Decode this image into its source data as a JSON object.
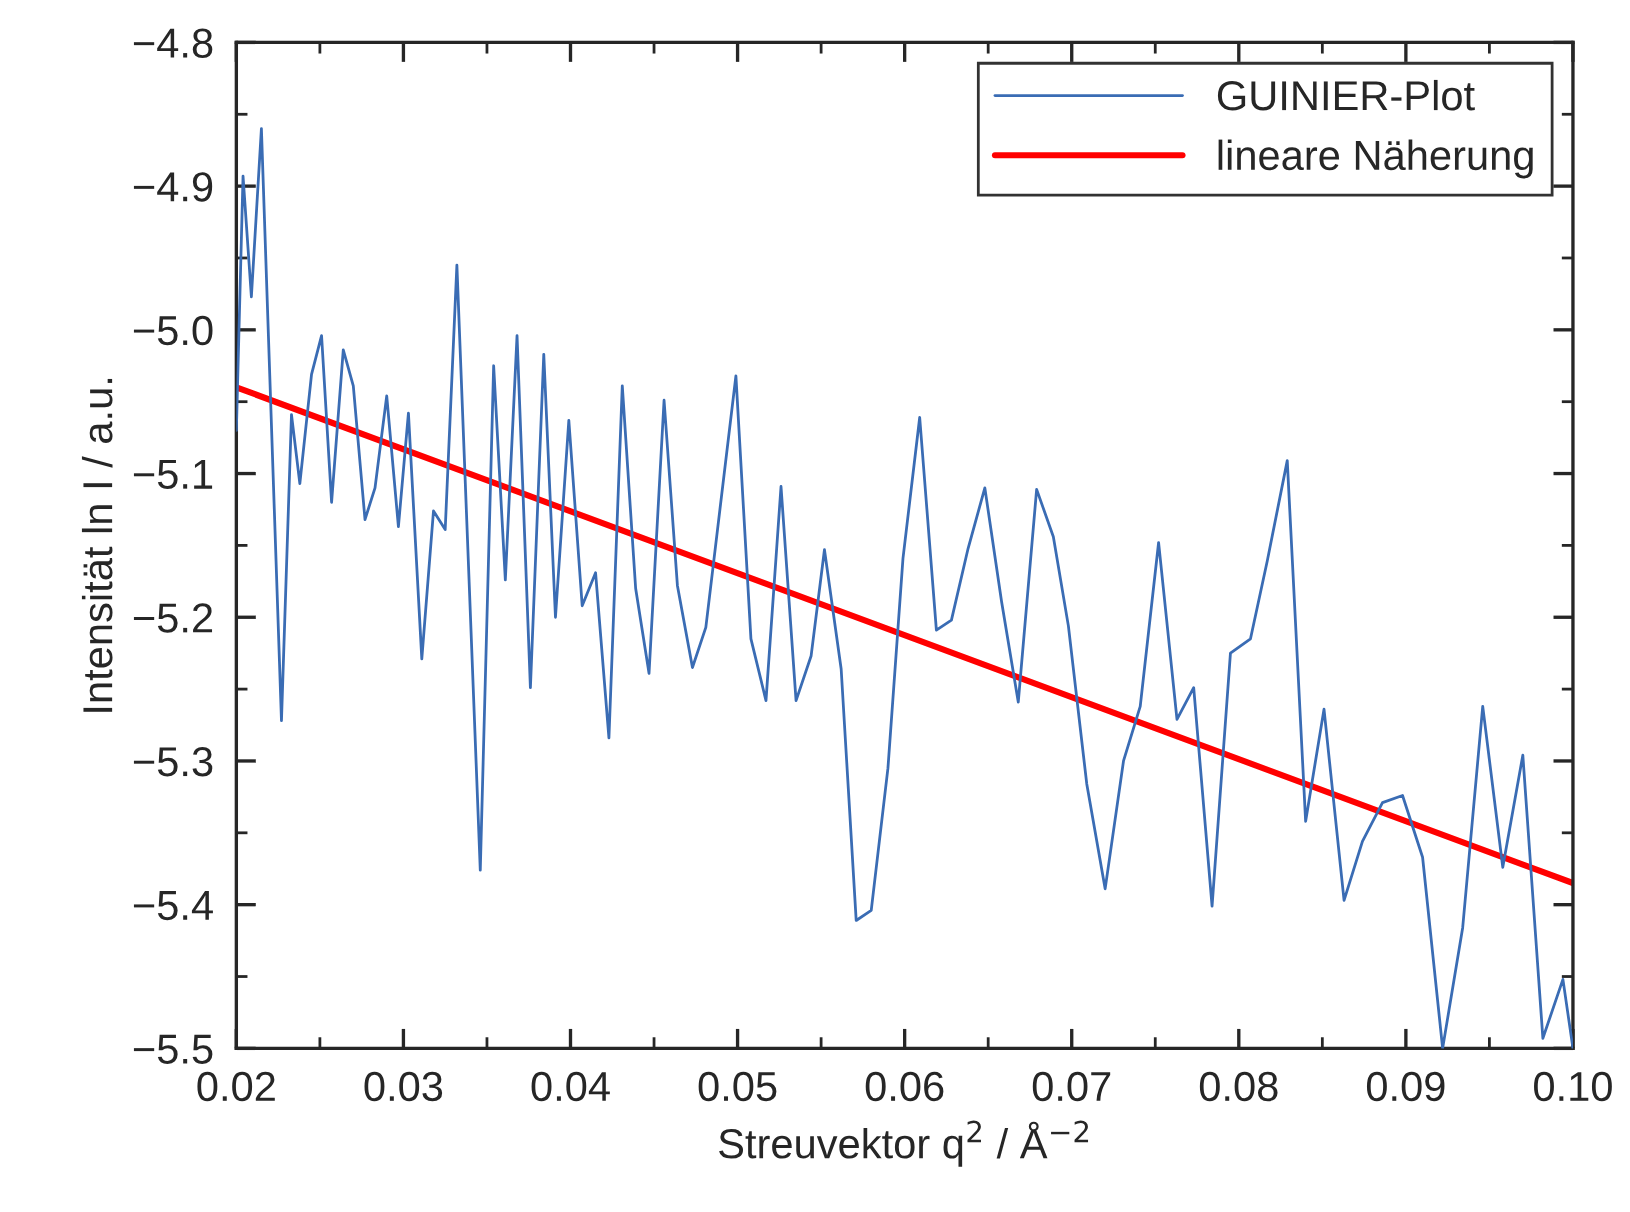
{
  "chart_data": {
    "type": "line",
    "xlabel": "Streuvektor q$^{2}$ / Å$^{−2}$",
    "ylabel": "Intensität ln I / a.u.",
    "xlim": [
      0.02,
      0.1
    ],
    "xticks": [
      0.02,
      0.03,
      0.04,
      0.05,
      0.06,
      0.07,
      0.08,
      0.09,
      {
        "value": 0.1,
        "label": "0.10"
      }
    ],
    "ylim": [
      -5.5,
      -4.8
    ],
    "yticks": [
      {
        "value": -5.5,
        "label": "−5.5"
      },
      {
        "value": -5.4,
        "label": "−5.4"
      },
      {
        "value": -5.3,
        "label": "−5.3"
      },
      {
        "value": -5.2,
        "label": "−5.2"
      },
      {
        "value": -5.1,
        "label": "−5.1"
      },
      {
        "value": -5.0,
        "label": "−5.0"
      },
      {
        "value": -4.9,
        "label": "−4.9"
      },
      {
        "value": -4.8,
        "label": "−4.8"
      }
    ],
    "grid": false,
    "legend": "top right",
    "series": [
      {
        "name": "GUINIER-Plot",
        "color": "#3a6cb4",
        "x": [
          0.02,
          0.0204,
          0.0209,
          0.0215,
          0.0227,
          0.0233,
          0.0238,
          0.0245,
          0.0251,
          0.0257,
          0.0264,
          0.027,
          0.0277,
          0.0283,
          0.029,
          0.0297,
          0.0303,
          0.0311,
          0.0318,
          0.0325,
          0.0332,
          0.0346,
          0.0354,
          0.0361,
          0.0368,
          0.0376,
          0.0384,
          0.0391,
          0.0399,
          0.0407,
          0.0415,
          0.0423,
          0.0431,
          0.0439,
          0.0447,
          0.0456,
          0.0464,
          0.0473,
          0.0481,
          0.0499,
          0.0508,
          0.0517,
          0.0526,
          0.0535,
          0.0544,
          0.0552,
          0.0562,
          0.0571,
          0.058,
          0.059,
          0.0599,
          0.0609,
          0.0619,
          0.0628,
          0.0638,
          0.0648,
          0.0658,
          0.0668,
          0.0679,
          0.0689,
          0.0698,
          0.0709,
          0.072,
          0.0731,
          0.0741,
          0.0752,
          0.0763,
          0.0773,
          0.0784,
          0.0795,
          0.0807,
          0.0817,
          0.0829,
          0.084,
          0.0851,
          0.0863,
          0.0874,
          0.0886,
          0.0898,
          0.091,
          0.0922,
          0.0934,
          0.0946,
          0.0958,
          0.097,
          0.0982,
          0.0994,
          0.1
        ],
        "values": [
          -5.07,
          -4.893,
          -4.977,
          -4.86,
          -5.272,
          -5.059,
          -5.107,
          -5.031,
          -5.004,
          -5.12,
          -5.014,
          -5.039,
          -5.132,
          -5.11,
          -5.046,
          -5.137,
          -5.058,
          -5.229,
          -5.126,
          -5.139,
          -4.955,
          -5.376,
          -5.025,
          -5.174,
          -5.004,
          -5.249,
          -5.017,
          -5.2,
          -5.063,
          -5.192,
          -5.169,
          -5.284,
          -5.039,
          -5.18,
          -5.239,
          -5.049,
          -5.178,
          -5.235,
          -5.207,
          -5.032,
          -5.215,
          -5.258,
          -5.109,
          -5.258,
          -5.227,
          -5.153,
          -5.236,
          -5.411,
          -5.404,
          -5.305,
          -5.159,
          -5.061,
          -5.209,
          -5.202,
          -5.152,
          -5.11,
          -5.189,
          -5.259,
          -5.111,
          -5.144,
          -5.206,
          -5.316,
          -5.389,
          -5.3,
          -5.262,
          -5.148,
          -5.271,
          -5.249,
          -5.401,
          -5.225,
          -5.215,
          -5.161,
          -5.091,
          -5.342,
          -5.264,
          -5.397,
          -5.356,
          -5.329,
          -5.324,
          -5.367,
          -5.5,
          -5.416,
          -5.262,
          -5.374,
          -5.296,
          -5.493,
          -5.452,
          -5.5
        ]
      },
      {
        "name": "lineare Näherung",
        "color": "#ff0000",
        "x": [
          0.02,
          0.1
        ],
        "values": [
          -5.04,
          -5.385
        ]
      }
    ]
  }
}
